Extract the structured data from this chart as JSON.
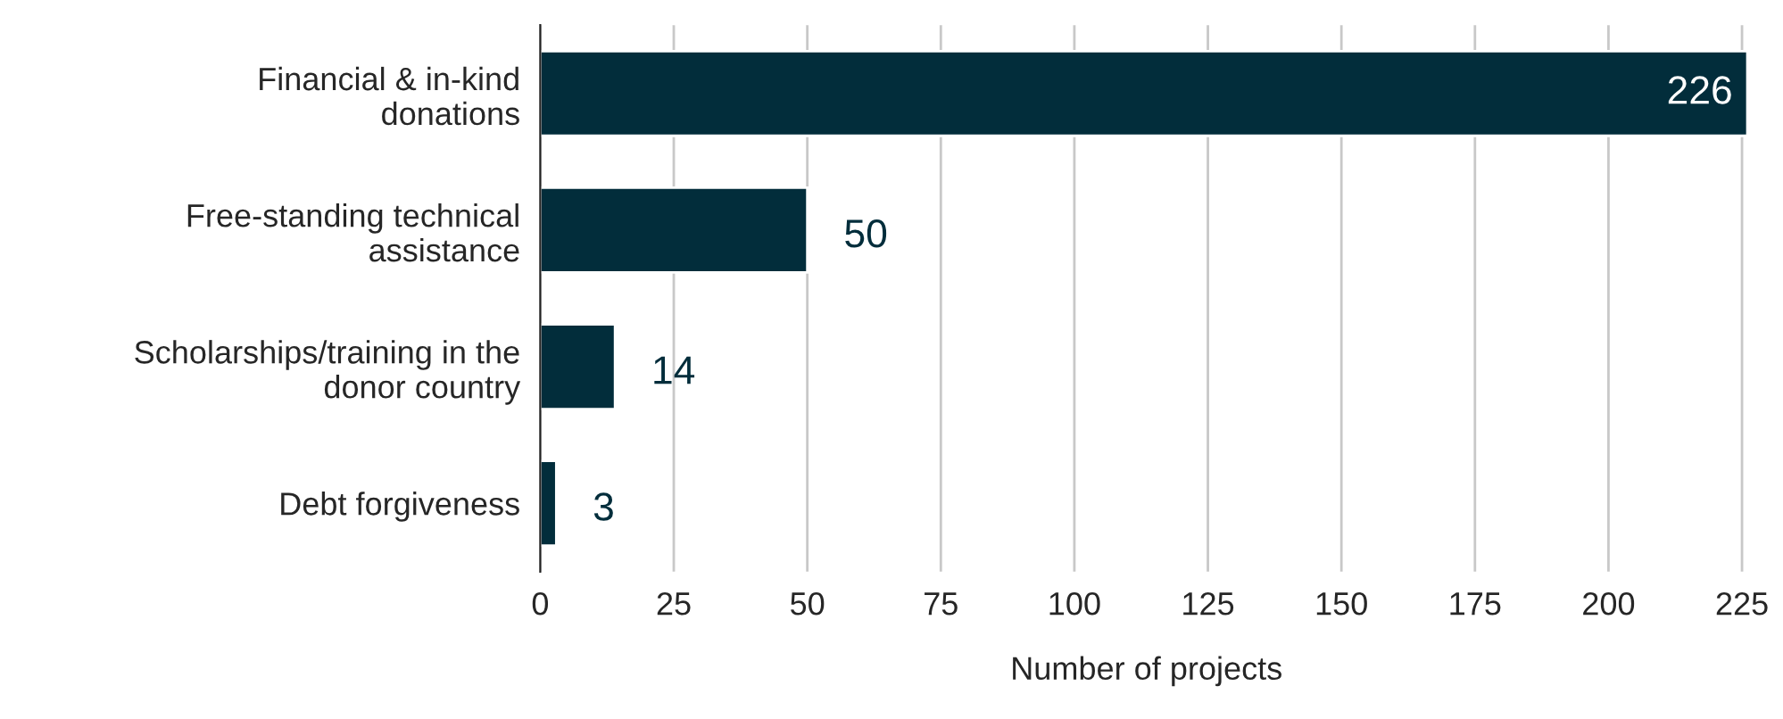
{
  "chart_data": {
    "type": "bar",
    "orientation": "horizontal",
    "xlabel": "Number of projects",
    "categories": [
      "Financial & in-kind\ndonations",
      "Free-standing technical\nassistance",
      "Scholarships/training in the\ndonor country",
      "Debt forgiveness"
    ],
    "values": [
      226,
      50,
      14,
      3
    ],
    "color": "#022d3b",
    "xlim": [
      0,
      227
    ],
    "xticks": [
      0,
      25,
      50,
      75,
      100,
      125,
      150,
      175,
      200,
      225
    ],
    "grid": "x",
    "data_labels": true
  }
}
